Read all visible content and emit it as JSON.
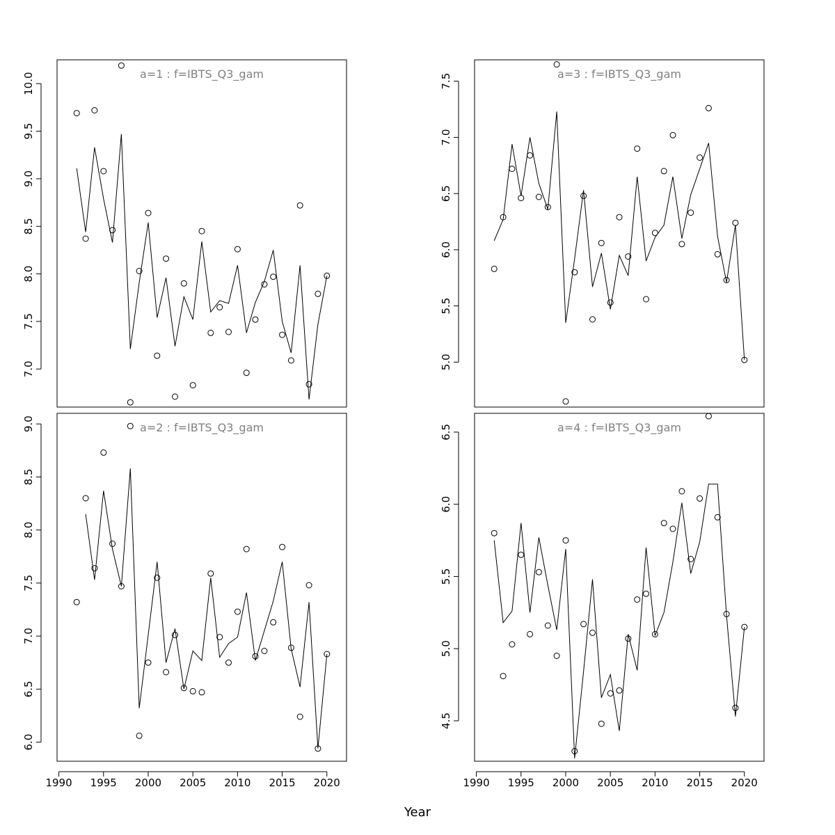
{
  "figure": {
    "xlabel": "Year"
  },
  "chart_data": [
    {
      "type": "scatter",
      "title": "a=1  :  f=IBTS_Q3_gam",
      "xlabel": "Year",
      "ylabel": "",
      "xlim": [
        1989.8,
        2022.2
      ],
      "ylim": [
        6.6,
        10.25
      ],
      "xticks": [
        1990,
        1995,
        2000,
        2005,
        2010,
        2015,
        2020
      ],
      "yticks": [
        7.0,
        7.5,
        8.0,
        8.5,
        9.0,
        9.5,
        10.0
      ],
      "ytick_labels": [
        "7.0",
        "7.5",
        "8.0",
        "8.5",
        "9.0",
        "9.5",
        "10.0"
      ],
      "series": [
        {
          "name": "observed",
          "style": "points",
          "x": [
            1992,
            1993,
            1994,
            1995,
            1996,
            1997,
            1998,
            1999,
            2000,
            2001,
            2002,
            2003,
            2004,
            2005,
            2006,
            2007,
            2008,
            2009,
            2010,
            2011,
            2012,
            2013,
            2014,
            2015,
            2016,
            2017,
            2018,
            2019,
            2020
          ],
          "values": [
            9.69,
            8.37,
            9.72,
            9.08,
            8.46,
            10.19,
            6.65,
            8.03,
            8.64,
            7.14,
            8.16,
            6.71,
            7.9,
            6.83,
            8.45,
            7.38,
            7.65,
            7.39,
            8.26,
            6.96,
            7.52,
            7.89,
            7.97,
            7.36,
            7.09,
            8.72,
            6.84,
            7.79,
            7.98
          ]
        },
        {
          "name": "fitted",
          "style": "line",
          "x": [
            1992,
            1993,
            1994,
            1995,
            1996,
            1997,
            1998,
            1999,
            2000,
            2001,
            2002,
            2003,
            2004,
            2005,
            2006,
            2007,
            2008,
            2009,
            2010,
            2011,
            2012,
            2013,
            2014,
            2015,
            2016,
            2017,
            2018,
            2019,
            2020
          ],
          "values": [
            9.11,
            8.44,
            9.33,
            8.79,
            8.33,
            9.47,
            7.21,
            7.91,
            8.54,
            7.54,
            7.96,
            7.24,
            7.76,
            7.52,
            8.34,
            7.6,
            7.72,
            7.69,
            8.09,
            7.38,
            7.7,
            7.92,
            8.25,
            7.5,
            7.17,
            8.09,
            6.68,
            7.47,
            7.98
          ]
        }
      ]
    },
    {
      "type": "scatter",
      "title": "a=3  :  f=IBTS_Q3_gam",
      "xlabel": "Year",
      "ylabel": "",
      "xlim": [
        1989.8,
        2022.2
      ],
      "ylim": [
        4.6,
        7.69
      ],
      "xticks": [
        1990,
        1995,
        2000,
        2005,
        2010,
        2015,
        2020
      ],
      "yticks": [
        5.0,
        5.5,
        6.0,
        6.5,
        7.0,
        7.5
      ],
      "ytick_labels": [
        "5.0",
        "5.5",
        "6.0",
        "6.5",
        "7.0",
        "7.5"
      ],
      "series": [
        {
          "name": "observed",
          "style": "points",
          "x": [
            1992,
            1993,
            1994,
            1995,
            1996,
            1997,
            1998,
            1999,
            2000,
            2001,
            2002,
            2003,
            2004,
            2005,
            2006,
            2007,
            2008,
            2009,
            2010,
            2011,
            2012,
            2013,
            2014,
            2015,
            2016,
            2017,
            2018,
            2019,
            2020
          ],
          "values": [
            5.83,
            6.29,
            6.72,
            6.46,
            6.84,
            6.47,
            6.38,
            7.65,
            4.65,
            5.8,
            6.48,
            5.38,
            6.06,
            5.53,
            6.29,
            5.94,
            6.9,
            5.56,
            6.15,
            6.7,
            7.02,
            6.05,
            6.33,
            6.82,
            7.26,
            5.96,
            5.73,
            6.24,
            5.02
          ]
        },
        {
          "name": "fitted",
          "style": "line",
          "x": [
            1992,
            1993,
            1994,
            1995,
            1996,
            1997,
            1998,
            1999,
            2000,
            2001,
            2002,
            2003,
            2004,
            2005,
            2006,
            2007,
            2008,
            2009,
            2010,
            2011,
            2012,
            2013,
            2014,
            2015,
            2016,
            2017,
            2018,
            2019,
            2020
          ],
          "values": [
            6.08,
            6.27,
            6.94,
            6.48,
            7.0,
            6.59,
            6.36,
            7.23,
            5.35,
            5.92,
            6.53,
            5.67,
            5.97,
            5.47,
            5.95,
            5.77,
            6.65,
            5.9,
            6.11,
            6.22,
            6.65,
            6.1,
            6.49,
            6.72,
            6.95,
            6.12,
            5.71,
            6.22,
            5.02
          ]
        }
      ]
    },
    {
      "type": "scatter",
      "title": "a=2  :  f=IBTS_Q3_gam",
      "xlabel": "Year",
      "ylabel": "",
      "xlim": [
        1989.8,
        2022.2
      ],
      "ylim": [
        5.82,
        9.1
      ],
      "xticks": [
        1990,
        1995,
        2000,
        2005,
        2010,
        2015,
        2020
      ],
      "yticks": [
        6.0,
        6.5,
        7.0,
        7.5,
        8.0,
        8.5,
        9.0
      ],
      "ytick_labels": [
        "6.0",
        "6.5",
        "7.0",
        "7.5",
        "8.0",
        "8.5",
        "9.0"
      ],
      "series": [
        {
          "name": "observed",
          "style": "points",
          "x": [
            1992,
            1993,
            1994,
            1995,
            1996,
            1997,
            1998,
            1999,
            2000,
            2001,
            2002,
            2003,
            2004,
            2005,
            2006,
            2007,
            2008,
            2009,
            2010,
            2011,
            2012,
            2013,
            2014,
            2015,
            2016,
            2017,
            2018,
            2019,
            2020
          ],
          "values": [
            7.32,
            8.3,
            7.64,
            8.73,
            7.87,
            7.47,
            8.98,
            6.06,
            6.75,
            7.55,
            6.66,
            7.01,
            6.51,
            6.48,
            6.47,
            7.59,
            6.99,
            6.75,
            7.23,
            7.82,
            6.81,
            6.86,
            7.13,
            7.84,
            6.89,
            6.24,
            7.48,
            5.94,
            6.83
          ]
        },
        {
          "name": "fitted",
          "style": "line",
          "x": [
            1993,
            1994,
            1995,
            1996,
            1997,
            1998,
            1999,
            2000,
            2001,
            2002,
            2003,
            2004,
            2005,
            2006,
            2007,
            2008,
            2009,
            2010,
            2011,
            2012,
            2013,
            2014,
            2015,
            2016,
            2017,
            2018,
            2019,
            2020
          ],
          "values": [
            8.15,
            7.53,
            8.37,
            7.82,
            7.47,
            8.58,
            6.32,
            7.01,
            7.7,
            6.75,
            7.07,
            6.5,
            6.86,
            6.77,
            7.55,
            6.8,
            6.93,
            6.99,
            7.41,
            6.77,
            7.05,
            7.33,
            7.7,
            6.88,
            6.52,
            7.32,
            5.94,
            6.83
          ]
        }
      ]
    },
    {
      "type": "scatter",
      "title": "a=4  :  f=IBTS_Q3_gam",
      "xlabel": "Year",
      "ylabel": "",
      "xlim": [
        1989.8,
        2022.2
      ],
      "ylim": [
        4.22,
        6.63
      ],
      "xticks": [
        1990,
        1995,
        2000,
        2005,
        2010,
        2015,
        2020
      ],
      "yticks": [
        4.5,
        5.0,
        5.5,
        6.0,
        6.5
      ],
      "ytick_labels": [
        "4.5",
        "5.0",
        "5.5",
        "6.0",
        "6.5"
      ],
      "series": [
        {
          "name": "observed",
          "style": "points",
          "x": [
            1992,
            1993,
            1994,
            1995,
            1996,
            1997,
            1998,
            1999,
            2000,
            2001,
            2002,
            2003,
            2004,
            2005,
            2006,
            2007,
            2008,
            2009,
            2010,
            2011,
            2012,
            2013,
            2014,
            2015,
            2016,
            2017,
            2018,
            2019,
            2020
          ],
          "values": [
            5.8,
            4.81,
            5.03,
            5.65,
            5.1,
            5.53,
            5.16,
            4.95,
            5.75,
            4.29,
            5.17,
            5.11,
            4.48,
            4.69,
            4.71,
            5.07,
            5.34,
            5.38,
            5.1,
            5.87,
            5.83,
            6.09,
            5.62,
            6.04,
            6.61,
            5.91,
            5.24,
            4.59,
            5.15
          ]
        },
        {
          "name": "fitted",
          "style": "line",
          "x": [
            1992,
            1993,
            1994,
            1995,
            1996,
            1997,
            1998,
            1999,
            2000,
            2001,
            2002,
            2003,
            2004,
            2005,
            2006,
            2007,
            2008,
            2009,
            2010,
            2011,
            2012,
            2013,
            2014,
            2015,
            2016,
            2017,
            2018,
            2019,
            2020
          ],
          "values": [
            5.75,
            5.18,
            5.26,
            5.87,
            5.25,
            5.77,
            5.44,
            5.13,
            5.69,
            4.24,
            4.84,
            5.48,
            4.66,
            4.82,
            4.43,
            5.1,
            4.85,
            5.7,
            5.09,
            5.25,
            5.6,
            6.01,
            5.52,
            5.74,
            6.14,
            6.14,
            5.23,
            4.53,
            5.15
          ]
        }
      ]
    }
  ]
}
